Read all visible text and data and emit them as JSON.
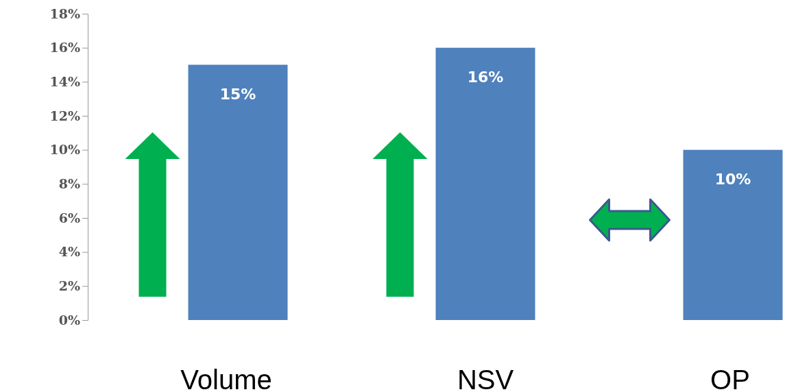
{
  "chart_data": {
    "type": "bar",
    "categories": [
      "Volume",
      "NSV",
      "OP"
    ],
    "values": [
      15,
      16,
      10
    ],
    "color": "#4f81bd",
    "value_labels": [
      "15%",
      "16%",
      "10%"
    ],
    "ylim": [
      0,
      18
    ],
    "yticks": [
      {
        "value": 0,
        "label": "0%"
      },
      {
        "value": 2,
        "label": "2%"
      },
      {
        "value": 4,
        "label": "4%"
      },
      {
        "value": 6,
        "label": "6%"
      },
      {
        "value": 8,
        "label": "8%"
      },
      {
        "value": 10,
        "label": "10%"
      },
      {
        "value": 12,
        "label": "12%"
      },
      {
        "value": 14,
        "label": "14%"
      },
      {
        "value": 16,
        "label": "16%"
      },
      {
        "value": 18,
        "label": "18%"
      }
    ],
    "grid": false
  }
}
